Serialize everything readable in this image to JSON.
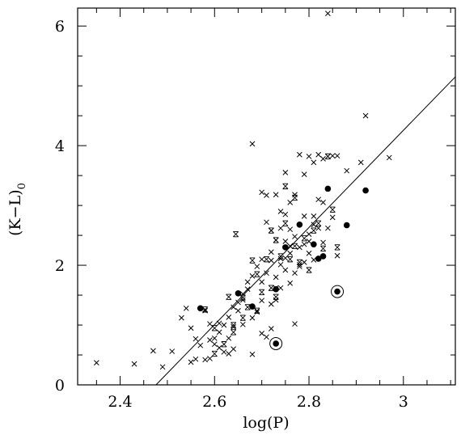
{
  "chart_data": {
    "type": "scatter",
    "xlabel": "log(P)",
    "ylabel": "(K−L)",
    "ylabel_subscript": "0",
    "xlim": [
      2.31,
      3.11
    ],
    "ylim": [
      0,
      6.3
    ],
    "xticks": [
      {
        "v": 2.4,
        "label": "2.4"
      },
      {
        "v": 2.6,
        "label": "2.6"
      },
      {
        "v": 2.8,
        "label": "2.8"
      },
      {
        "v": 3.0,
        "label": "3"
      }
    ],
    "yticks": [
      {
        "v": 0,
        "label": "0"
      },
      {
        "v": 2,
        "label": "2"
      },
      {
        "v": 4,
        "label": "4"
      },
      {
        "v": 6,
        "label": "6"
      }
    ],
    "grid": false,
    "fit_line": {
      "x": [
        2.476,
        3.11
      ],
      "y": [
        0.0,
        5.15
      ]
    },
    "series": [
      {
        "marker": "cross",
        "points": [
          [
            2.35,
            0.37
          ],
          [
            2.43,
            0.35
          ],
          [
            2.47,
            0.57
          ],
          [
            2.49,
            0.3
          ],
          [
            2.51,
            0.56
          ],
          [
            2.53,
            1.12
          ],
          [
            2.54,
            1.28
          ],
          [
            2.55,
            0.95
          ],
          [
            2.56,
            0.77
          ],
          [
            2.55,
            0.38
          ],
          [
            2.58,
            1.24
          ],
          [
            2.59,
            1.02
          ],
          [
            2.59,
            0.75
          ],
          [
            2.6,
            0.78
          ],
          [
            2.61,
            1.03
          ],
          [
            2.61,
            0.62
          ],
          [
            2.62,
            0.55
          ],
          [
            2.63,
            0.78
          ],
          [
            2.63,
            0.52
          ],
          [
            2.64,
            0.6
          ],
          [
            2.64,
            0.97
          ],
          [
            2.65,
            1.24
          ],
          [
            2.66,
            1.01
          ],
          [
            2.66,
            1.52
          ],
          [
            2.67,
            1.72
          ],
          [
            2.68,
            0.51
          ],
          [
            2.68,
            1.12
          ],
          [
            2.69,
            1.22
          ],
          [
            2.7,
            1.41
          ],
          [
            2.7,
            0.86
          ],
          [
            2.71,
            0.8
          ],
          [
            2.72,
            0.94
          ],
          [
            2.72,
            1.35
          ],
          [
            2.73,
            1.42
          ],
          [
            2.73,
            1.62
          ],
          [
            2.73,
            1.8
          ],
          [
            2.74,
            2.01
          ],
          [
            2.74,
            2.11
          ],
          [
            2.75,
            2.4
          ],
          [
            2.75,
            2.12
          ],
          [
            2.76,
            2.2
          ],
          [
            2.77,
            1.87
          ],
          [
            2.77,
            1.02
          ],
          [
            2.78,
            2.3
          ],
          [
            2.78,
            2.01
          ],
          [
            2.79,
            2.35
          ],
          [
            2.79,
            2.82
          ],
          [
            2.8,
            2.4
          ],
          [
            2.8,
            2.2
          ],
          [
            2.81,
            2.09
          ],
          [
            2.81,
            2.68
          ],
          [
            2.82,
            2.62
          ],
          [
            2.82,
            3.1
          ],
          [
            2.83,
            2.38
          ],
          [
            2.83,
            3.05
          ],
          [
            2.84,
            2.62
          ],
          [
            2.85,
            2.8
          ],
          [
            2.85,
            3.83
          ],
          [
            2.86,
            3.83
          ],
          [
            2.86,
            2.16
          ],
          [
            2.88,
            3.58
          ],
          [
            2.91,
            3.72
          ],
          [
            2.92,
            4.5
          ],
          [
            2.97,
            3.8
          ],
          [
            2.68,
            4.03
          ],
          [
            2.7,
            3.22
          ],
          [
            2.71,
            3.17
          ],
          [
            2.73,
            3.18
          ],
          [
            2.74,
            2.9
          ],
          [
            2.75,
            3.55
          ],
          [
            2.76,
            3.05
          ],
          [
            2.77,
            3.18
          ],
          [
            2.78,
            3.85
          ],
          [
            2.79,
            3.52
          ],
          [
            2.8,
            3.82
          ],
          [
            2.81,
            3.72
          ],
          [
            2.82,
            3.85
          ],
          [
            2.83,
            3.78
          ],
          [
            2.84,
            3.82
          ],
          [
            2.84,
            6.21
          ],
          [
            2.72,
            2.58
          ],
          [
            2.73,
            2.42
          ],
          [
            2.74,
            2.62
          ],
          [
            2.76,
            2.6
          ],
          [
            2.77,
            2.48
          ],
          [
            2.71,
            2.72
          ],
          [
            2.72,
            2.22
          ],
          [
            2.7,
            2.1
          ],
          [
            2.69,
            1.98
          ],
          [
            2.68,
            1.82
          ],
          [
            2.67,
            1.6
          ],
          [
            2.66,
            1.42
          ],
          [
            2.65,
            1.38
          ],
          [
            2.64,
            1.3
          ],
          [
            2.63,
            1.13
          ],
          [
            2.62,
            1.0
          ],
          [
            2.61,
            0.88
          ],
          [
            2.6,
            0.68
          ],
          [
            2.59,
            0.44
          ],
          [
            2.58,
            0.42
          ],
          [
            2.57,
            0.66
          ],
          [
            2.56,
            0.43
          ],
          [
            2.76,
            1.7
          ],
          [
            2.74,
            1.62
          ],
          [
            2.75,
            1.92
          ],
          [
            2.78,
            1.98
          ],
          [
            2.79,
            2.05
          ],
          [
            2.8,
            2.52
          ],
          [
            2.81,
            2.82
          ],
          [
            2.76,
            2.32
          ],
          [
            2.72,
            2.08
          ],
          [
            2.71,
            1.87
          ],
          [
            2.7,
            1.72
          ],
          [
            2.75,
            2.85
          ]
        ]
      },
      {
        "marker": "double-cross",
        "points": [
          [
            2.58,
            1.26
          ],
          [
            2.6,
            0.95
          ],
          [
            2.63,
            1.47
          ],
          [
            2.64,
            1.0
          ],
          [
            2.645,
            2.52
          ],
          [
            2.66,
            1.46
          ],
          [
            2.68,
            2.08
          ],
          [
            2.69,
            1.85
          ],
          [
            2.69,
            1.24
          ],
          [
            2.7,
            1.55
          ],
          [
            2.71,
            2.1
          ],
          [
            2.72,
            2.58
          ],
          [
            2.73,
            2.42
          ],
          [
            2.73,
            1.47
          ],
          [
            2.74,
            2.15
          ],
          [
            2.75,
            3.32
          ],
          [
            2.75,
            2.7
          ],
          [
            2.76,
            2.1
          ],
          [
            2.77,
            2.32
          ],
          [
            2.78,
            2.05
          ],
          [
            2.79,
            2.45
          ],
          [
            2.8,
            1.92
          ],
          [
            2.81,
            2.58
          ],
          [
            2.82,
            2.7
          ],
          [
            2.83,
            2.28
          ],
          [
            2.84,
            3.82
          ],
          [
            2.85,
            2.93
          ],
          [
            2.86,
            2.3
          ],
          [
            2.6,
            0.52
          ],
          [
            2.62,
            0.68
          ],
          [
            2.64,
            0.88
          ],
          [
            2.66,
            1.12
          ],
          [
            2.67,
            1.3
          ],
          [
            2.77,
            3.13
          ],
          [
            2.72,
            1.62
          ]
        ]
      },
      {
        "marker": "filled-circle",
        "points": [
          [
            2.57,
            1.28
          ],
          [
            2.65,
            1.53
          ],
          [
            2.68,
            1.31
          ],
          [
            2.73,
            1.6
          ],
          [
            2.75,
            2.3
          ],
          [
            2.78,
            2.68
          ],
          [
            2.81,
            2.35
          ],
          [
            2.82,
            2.11
          ],
          [
            2.83,
            2.15
          ],
          [
            2.84,
            3.28
          ],
          [
            2.88,
            2.67
          ],
          [
            2.92,
            3.25
          ],
          [
            2.73,
            0.69
          ],
          [
            2.86,
            1.56
          ]
        ]
      },
      {
        "marker": "open-ring",
        "points": [
          [
            2.73,
            0.69
          ],
          [
            2.86,
            1.56
          ]
        ]
      }
    ]
  }
}
